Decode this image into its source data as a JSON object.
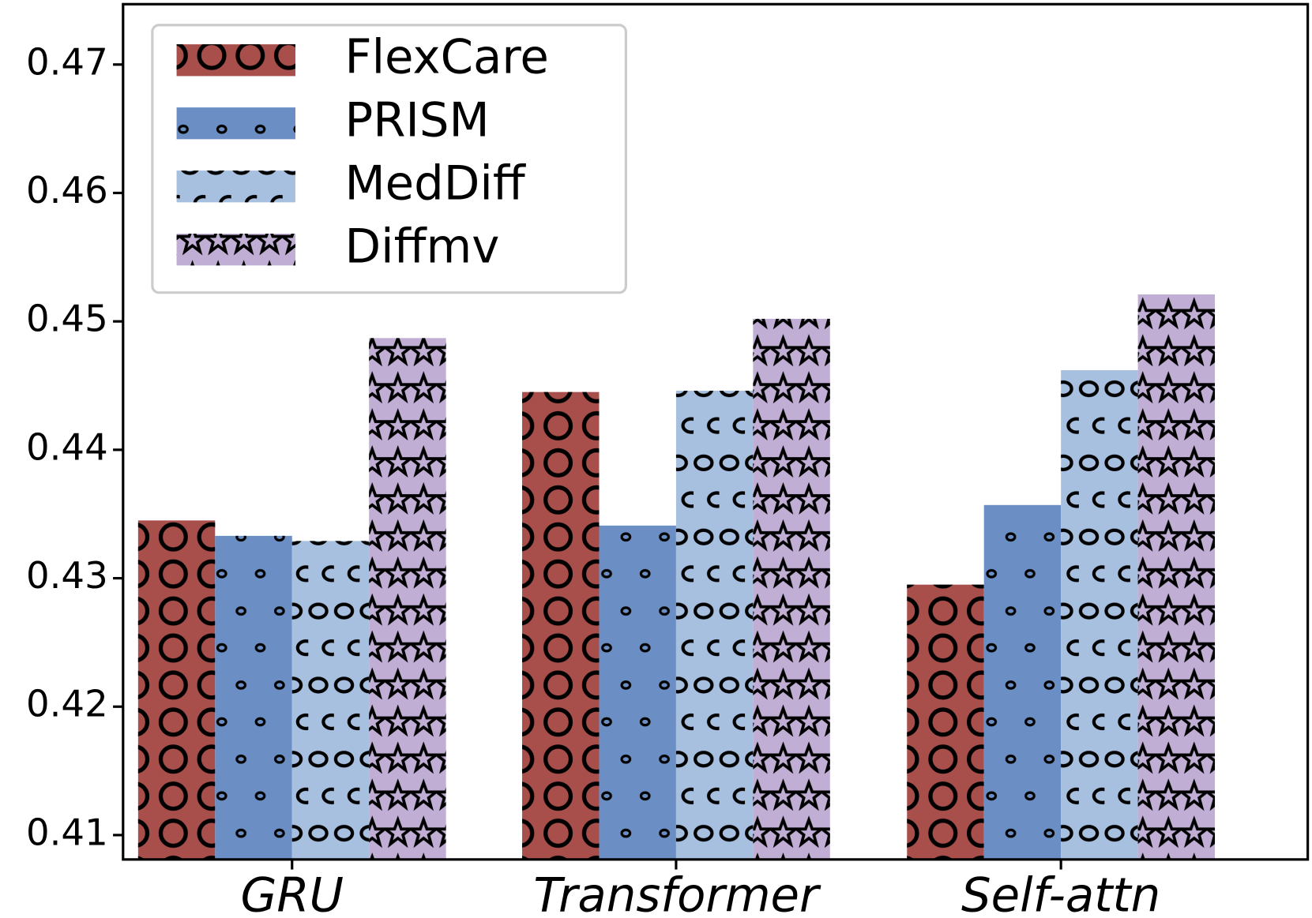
{
  "chart_data": {
    "type": "bar",
    "categories": [
      "GRU",
      "Transformer",
      "Self-attn"
    ],
    "series": [
      {
        "name": "FlexCare",
        "color": "#a84f4c",
        "values": [
          0.4345,
          0.4445,
          0.4295
        ]
      },
      {
        "name": "PRISM",
        "color": "#6b8fc4",
        "values": [
          0.4333,
          0.4341,
          0.4357
        ]
      },
      {
        "name": "MedDiff",
        "color": "#a8c0e0",
        "values": [
          0.4329,
          0.4446,
          0.4462
        ]
      },
      {
        "name": "Diffmv",
        "color": "#c0aed4",
        "values": [
          0.4487,
          0.4502,
          0.4521
        ]
      }
    ],
    "ylim": [
      0.4081,
      0.4747
    ],
    "yticks": [
      0.41,
      0.42,
      0.43,
      0.44,
      0.45,
      0.46,
      0.47
    ],
    "legend": "upper left",
    "grid": false
  }
}
